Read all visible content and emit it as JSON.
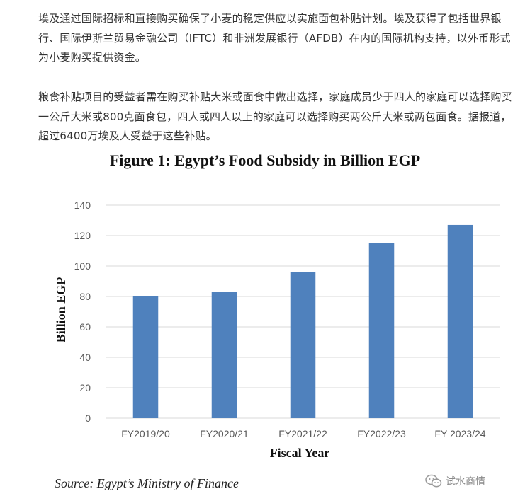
{
  "article": {
    "paragraph_1": "埃及通过国际招标和直接购买确保了小麦的稳定供应以实施面包补贴计划。埃及获得了包括世界银行、国际伊斯兰贸易金融公司（IFTC）和非洲发展银行（AFDB）在内的国际机构支持，以外币形式为小麦购买提供资金。",
    "paragraph_2": "粮食补贴项目的受益者需在购买补贴大米或面食中做出选择，家庭成员少于四人的家庭可以选择购买一公斤大米或800克面食包，四人或四人以上的家庭可以选择购买两公斤大米或两包面食。据报道，超过6400万埃及人受益于这些补贴。"
  },
  "chart_data": {
    "type": "bar",
    "title": "Figure 1: Egypt’s Food Subsidy in Billion EGP",
    "xlabel": "Fiscal Year",
    "ylabel": "Billion EGP",
    "categories": [
      "FY2019/20",
      "FY2020/21",
      "FY2021/22",
      "FY2022/23",
      "FY 2023/24"
    ],
    "values": [
      80,
      83,
      96,
      115,
      127
    ],
    "ylim": [
      0,
      140
    ],
    "yticks": [
      0,
      20,
      40,
      60,
      80,
      100,
      120,
      140
    ],
    "grid": true,
    "legend": "none",
    "bar_color": "#4f81bd",
    "grid_color": "#d9d9d9"
  },
  "source": "Source: Egypt’s Ministry of Finance",
  "watermark": {
    "icon": "wechat-icon",
    "text": "试水商情"
  }
}
